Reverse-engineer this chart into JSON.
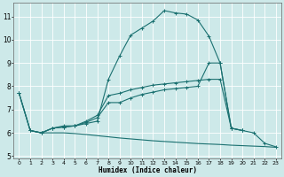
{
  "xlabel": "Humidex (Indice chaleur)",
  "background_color": "#cde9e9",
  "line_color": "#1a7070",
  "grid_color": "#ffffff",
  "xlim": [
    -0.5,
    23.5
  ],
  "ylim": [
    4.9,
    11.6
  ],
  "yticks": [
    5,
    6,
    7,
    8,
    9,
    10,
    11
  ],
  "xticks": [
    0,
    1,
    2,
    3,
    4,
    5,
    6,
    7,
    8,
    9,
    10,
    11,
    12,
    13,
    14,
    15,
    16,
    17,
    18,
    19,
    20,
    21,
    22,
    23
  ],
  "line1_x": [
    0,
    1,
    2,
    3,
    4,
    5,
    6,
    7,
    8,
    9,
    10,
    11,
    12,
    13,
    14,
    15,
    16,
    17,
    18,
    19,
    20,
    21,
    22,
    23
  ],
  "line1_y": [
    7.7,
    6.1,
    6.0,
    6.2,
    6.3,
    6.3,
    6.4,
    6.5,
    8.3,
    9.3,
    10.2,
    10.5,
    10.8,
    11.25,
    11.15,
    11.1,
    10.85,
    10.15,
    9.0,
    6.2,
    6.1,
    6.0,
    5.55,
    5.4
  ],
  "line2_x": [
    0,
    1,
    2,
    3,
    4,
    5,
    6,
    7,
    8,
    9,
    10,
    11,
    12,
    13,
    14,
    15,
    16,
    17,
    18,
    19,
    20
  ],
  "line2_y": [
    7.7,
    6.1,
    6.0,
    6.2,
    6.25,
    6.3,
    6.5,
    6.75,
    7.6,
    7.7,
    7.85,
    7.95,
    8.05,
    8.1,
    8.15,
    8.2,
    8.25,
    8.3,
    8.3,
    6.2,
    6.1
  ],
  "line3_x": [
    0,
    1,
    2,
    3,
    4,
    5,
    6,
    7,
    8,
    9,
    10,
    11,
    12,
    13,
    14,
    15,
    16,
    17,
    18,
    19,
    20
  ],
  "line3_y": [
    7.7,
    6.1,
    6.0,
    6.2,
    6.25,
    6.3,
    6.45,
    6.65,
    7.3,
    7.3,
    7.5,
    7.65,
    7.75,
    7.85,
    7.9,
    7.95,
    8.0,
    9.0,
    9.0,
    6.2,
    6.1
  ],
  "line4_x": [
    1,
    2,
    3,
    4,
    5,
    6,
    7,
    8,
    9,
    10,
    11,
    12,
    13,
    14,
    15,
    16,
    17,
    18,
    19,
    20,
    21,
    22,
    23
  ],
  "line4_y": [
    6.1,
    6.0,
    6.0,
    6.0,
    5.97,
    5.93,
    5.88,
    5.83,
    5.78,
    5.74,
    5.7,
    5.66,
    5.63,
    5.6,
    5.57,
    5.54,
    5.52,
    5.5,
    5.47,
    5.45,
    5.43,
    5.41,
    5.38
  ]
}
